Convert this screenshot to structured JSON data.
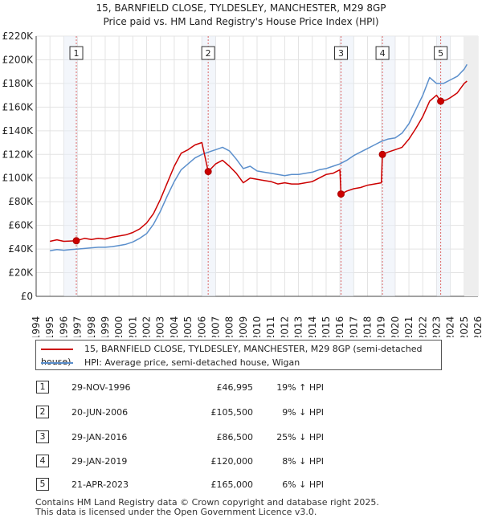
{
  "chart_data": {
    "type": "line",
    "title": "15, BARNFIELD CLOSE, TYLDESLEY, MANCHESTER, M29 8GP",
    "subtitle": "Price paid vs. HM Land Registry's House Price Index (HPI)",
    "xlabel": "",
    "ylabel": "",
    "xlim": [
      1994,
      2026
    ],
    "ylim": [
      0,
      220000
    ],
    "x_ticks": [
      "1994",
      "1995",
      "1996",
      "1997",
      "1998",
      "1999",
      "2000",
      "2001",
      "2002",
      "2003",
      "2004",
      "2005",
      "2006",
      "2007",
      "2008",
      "2009",
      "2010",
      "2011",
      "2012",
      "2013",
      "2014",
      "2015",
      "2016",
      "2017",
      "2018",
      "2019",
      "2020",
      "2021",
      "2022",
      "2023",
      "2024",
      "2025",
      "2026"
    ],
    "y_ticks": [
      "£0",
      "£20K",
      "£40K",
      "£60K",
      "£80K",
      "£100K",
      "£120K",
      "£140K",
      "£160K",
      "£180K",
      "£200K",
      "£220K"
    ],
    "grid": true,
    "colors": {
      "property": "#cc0000",
      "hpi": "#5b8fcc",
      "marker_line": "#dd6666"
    },
    "series": [
      {
        "name": "15, BARNFIELD CLOSE, TYLDESLEY, MANCHESTER, M29 8GP (semi-detached house)",
        "x": [
          1995.0,
          1995.5,
          1996.0,
          1996.5,
          1996.91,
          1997.5,
          1998.0,
          1998.5,
          1999.0,
          1999.5,
          2000.0,
          2000.5,
          2001.0,
          2001.5,
          2002.0,
          2002.5,
          2003.0,
          2003.5,
          2004.0,
          2004.5,
          2005.0,
          2005.5,
          2006.0,
          2006.46,
          2007.0,
          2007.5,
          2008.0,
          2008.5,
          2009.0,
          2009.5,
          2010.0,
          2010.5,
          2011.0,
          2011.5,
          2012.0,
          2012.5,
          2013.0,
          2013.5,
          2014.0,
          2014.5,
          2015.0,
          2015.5,
          2016.0,
          2016.08,
          2016.5,
          2017.0,
          2017.5,
          2018.0,
          2018.5,
          2019.0,
          2019.08,
          2019.5,
          2020.0,
          2020.5,
          2021.0,
          2021.5,
          2022.0,
          2022.5,
          2023.0,
          2023.3,
          2023.7,
          2024.0,
          2024.5,
          2025.0,
          2025.2
        ],
        "values": [
          46500,
          47800,
          46500,
          46800,
          46995,
          49000,
          48000,
          49000,
          48500,
          50000,
          51000,
          52000,
          54000,
          57000,
          62000,
          70000,
          82000,
          96000,
          110000,
          121000,
          124000,
          128000,
          130000,
          105500,
          112000,
          115000,
          110000,
          104000,
          96000,
          100000,
          99000,
          98000,
          97000,
          95000,
          96000,
          95000,
          95000,
          96000,
          97000,
          100000,
          103000,
          104000,
          107000,
          86500,
          89000,
          91000,
          92000,
          94000,
          95000,
          96000,
          120000,
          122000,
          124000,
          126000,
          133000,
          142000,
          152000,
          165000,
          170000,
          165000,
          166000,
          168000,
          172000,
          180000,
          182000
        ]
      },
      {
        "name": "HPI: Average price, semi-detached house, Wigan",
        "x": [
          1995.0,
          1995.5,
          1996.0,
          1996.5,
          1997.0,
          1997.5,
          1998.0,
          1998.5,
          1999.0,
          1999.5,
          2000.0,
          2000.5,
          2001.0,
          2001.5,
          2002.0,
          2002.5,
          2003.0,
          2003.5,
          2004.0,
          2004.5,
          2005.0,
          2005.5,
          2006.0,
          2006.5,
          2007.0,
          2007.5,
          2008.0,
          2008.5,
          2009.0,
          2009.5,
          2010.0,
          2010.5,
          2011.0,
          2011.5,
          2012.0,
          2012.5,
          2013.0,
          2013.5,
          2014.0,
          2014.5,
          2015.0,
          2015.5,
          2016.0,
          2016.5,
          2017.0,
          2017.5,
          2018.0,
          2018.5,
          2019.0,
          2019.5,
          2020.0,
          2020.5,
          2021.0,
          2021.5,
          2022.0,
          2022.5,
          2023.0,
          2023.5,
          2024.0,
          2024.5,
          2025.0,
          2025.2
        ],
        "values": [
          38500,
          39500,
          39000,
          39500,
          40000,
          40500,
          41000,
          41500,
          41500,
          42000,
          43000,
          44000,
          46000,
          49000,
          53000,
          61000,
          72000,
          85000,
          97000,
          107000,
          112000,
          117000,
          120000,
          122000,
          124000,
          126000,
          123000,
          116000,
          108000,
          110000,
          106000,
          105000,
          104000,
          103000,
          102000,
          103000,
          103000,
          104000,
          105000,
          107000,
          108000,
          110000,
          112000,
          115000,
          119000,
          122000,
          125000,
          128000,
          131000,
          133000,
          134000,
          138000,
          146000,
          158000,
          170000,
          185000,
          180000,
          180000,
          183000,
          186000,
          192000,
          196000
        ]
      }
    ],
    "transactions": [
      {
        "num": "1",
        "x": 1996.91,
        "price": 46995,
        "date": "29-NOV-1996",
        "price_label": "£46,995",
        "hpi": "19% ↑ HPI"
      },
      {
        "num": "2",
        "x": 2006.46,
        "price": 105500,
        "date": "20-JUN-2006",
        "price_label": "£105,500",
        "hpi": "9% ↓ HPI"
      },
      {
        "num": "3",
        "x": 2016.08,
        "price": 86500,
        "date": "29-JAN-2016",
        "price_label": "£86,500",
        "hpi": "25% ↓ HPI"
      },
      {
        "num": "4",
        "x": 2019.08,
        "price": 120000,
        "date": "29-JAN-2019",
        "price_label": "£120,000",
        "hpi": "8% ↓ HPI"
      },
      {
        "num": "5",
        "x": 2023.3,
        "price": 165000,
        "date": "21-APR-2023",
        "price_label": "£165,000",
        "hpi": "6% ↓ HPI"
      }
    ]
  },
  "legend": {
    "property_label": "15, BARNFIELD CLOSE, TYLDESLEY, MANCHESTER, M29 8GP (semi-detached house)",
    "hpi_label": "HPI: Average price, semi-detached house, Wigan"
  },
  "footer": {
    "line1": "Contains HM Land Registry data © Crown copyright and database right 2025.",
    "line2": "This data is licensed under the Open Government Licence v3.0."
  }
}
